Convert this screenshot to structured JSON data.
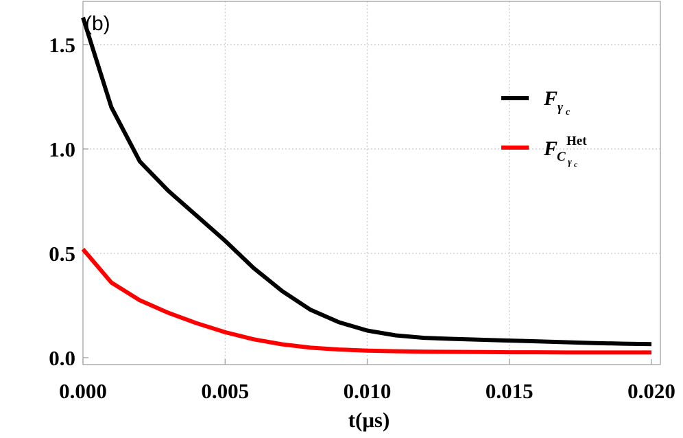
{
  "chart_data": {
    "type": "line",
    "panel_label": "(b)",
    "title": "",
    "xlabel": "t(μs)",
    "ylabel": "",
    "xlim": [
      0,
      0.02
    ],
    "ylim": [
      0,
      1.65
    ],
    "x_ticks": [
      "0.000",
      "0.005",
      "0.010",
      "0.015",
      "0.020"
    ],
    "x_tick_values": [
      0,
      0.005,
      0.01,
      0.015,
      0.02
    ],
    "y_ticks": [
      "0.0",
      "0.5",
      "1.0",
      "1.5"
    ],
    "y_tick_values": [
      0,
      0.5,
      1.0,
      1.5
    ],
    "grid": true,
    "legend_position": "right",
    "x": [
      0.0,
      0.001,
      0.002,
      0.003,
      0.004,
      0.005,
      0.006,
      0.007,
      0.008,
      0.009,
      0.01,
      0.011,
      0.012,
      0.013,
      0.014,
      0.015,
      0.016,
      0.017,
      0.018,
      0.019,
      0.02
    ],
    "series": [
      {
        "name": "F_{γc}",
        "legend_main": "F",
        "legend_sub": "γ",
        "legend_subsub": "c",
        "color": "#000000",
        "values": [
          1.63,
          1.2,
          0.94,
          0.8,
          0.68,
          0.56,
          0.43,
          0.32,
          0.23,
          0.17,
          0.13,
          0.107,
          0.095,
          0.09,
          0.086,
          0.082,
          0.078,
          0.074,
          0.07,
          0.067,
          0.065
        ]
      },
      {
        "name": "F_{Cγc}^{Het}",
        "legend_main": "F",
        "legend_sub": "C",
        "legend_subsub": "γ",
        "legend_subsubsub": "c",
        "legend_sup": "Het",
        "color": "#ff0000",
        "values": [
          0.52,
          0.36,
          0.275,
          0.215,
          0.165,
          0.122,
          0.088,
          0.064,
          0.048,
          0.039,
          0.034,
          0.031,
          0.029,
          0.028,
          0.027,
          0.026,
          0.026,
          0.025,
          0.025,
          0.025,
          0.025
        ]
      }
    ]
  }
}
